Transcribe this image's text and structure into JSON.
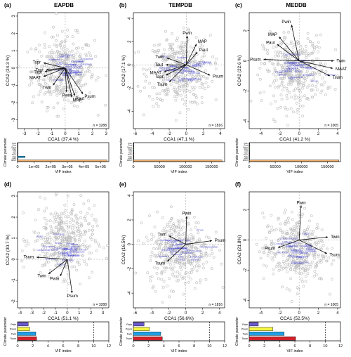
{
  "figure": {
    "panels": [
      {
        "letter": "(a)",
        "db": "EAPDB"
      },
      {
        "letter": "(b)",
        "db": "TEMPDB"
      },
      {
        "letter": "(c)",
        "db": "MEDDB"
      },
      {
        "letter": "(d)",
        "db": ""
      },
      {
        "letter": "(e)",
        "db": ""
      },
      {
        "letter": "(f)",
        "db": ""
      }
    ]
  },
  "colors": {
    "points": "#bdbdbd",
    "species": "#2b2bcc",
    "arrows": "#111111",
    "bars": {
      "Pwin": "#6a5acd",
      "Psum": "#f5f542",
      "Twin": "#1ea0e6",
      "Tsum": "#d2202a",
      "Pspr": "#7fd17f",
      "Paut": "#9aa0ff",
      "Tspr": "#b86cc4",
      "Taut": "#20b2aa",
      "MAP": "#c8c8c8",
      "MAAT": "#f4b06a"
    }
  },
  "chart_data": [
    {
      "type": "scatter",
      "panel": "a",
      "xlabel": "CCA1 (37.4 %)",
      "ylabel": "CCA2 (24.3 %)",
      "xlim": [
        -3.5,
        3.2
      ],
      "ylim": [
        -3.5,
        3.2
      ],
      "xticks": [
        -3,
        -2,
        -1,
        0,
        1,
        2,
        3
      ],
      "yticks": [
        -3,
        -2,
        -1,
        0,
        1,
        2,
        3
      ],
      "n_label": "n = 3288",
      "arrows": [
        {
          "name": "Tspr",
          "x": -1.6,
          "y": 0.3
        },
        {
          "name": "Taut",
          "x": -1.4,
          "y": -0.1
        },
        {
          "name": "MAAT",
          "x": -1.6,
          "y": -0.5
        },
        {
          "name": "Tapr",
          "x": -1.5,
          "y": -0.2
        },
        {
          "name": "Twin",
          "x": -0.9,
          "y": -1.0
        },
        {
          "name": "Pwin",
          "x": 0.1,
          "y": -1.4
        },
        {
          "name": "MAP",
          "x": 0.5,
          "y": -1.7
        },
        {
          "name": "Paut",
          "x": 0.7,
          "y": -1.6
        },
        {
          "name": "Psum",
          "x": 1.3,
          "y": -1.5
        }
      ]
    },
    {
      "type": "scatter",
      "panel": "b",
      "xlabel": "CCA1 (47.1 %)",
      "ylabel": "CCA2 (17.1 %)",
      "xlim": [
        -6.2,
        4.5
      ],
      "ylim": [
        -5.5,
        4.5
      ],
      "xticks": [
        -6,
        -4,
        -2,
        0,
        2,
        4
      ],
      "yticks": [
        -4,
        -2,
        0,
        2,
        4
      ],
      "n_label": "n = 1816",
      "arrows": [
        {
          "name": "Pwin",
          "x": 0.1,
          "y": 2.5
        },
        {
          "name": "MAP",
          "x": 1.2,
          "y": 1.8
        },
        {
          "name": "Paut",
          "x": 1.3,
          "y": 1.1
        },
        {
          "name": "Psum",
          "x": 2.8,
          "y": -0.9
        },
        {
          "name": "Twin",
          "x": -2.3,
          "y": 0.6
        },
        {
          "name": "Taut",
          "x": -2.4,
          "y": 0.0
        },
        {
          "name": "MAAT",
          "x": -2.6,
          "y": -0.6
        },
        {
          "name": "Tapr",
          "x": -2.4,
          "y": -0.9
        },
        {
          "name": "Tsum",
          "x": -2.0,
          "y": -1.5
        }
      ]
    },
    {
      "type": "scatter",
      "panel": "c",
      "xlabel": "CCA1 (41.2 %)",
      "ylabel": "CCA2 (22.6 %)",
      "xlim": [
        -5.2,
        4.3
      ],
      "ylim": [
        -4.5,
        3.2
      ],
      "xticks": [
        -4,
        -2,
        0,
        2,
        4
      ],
      "yticks": [
        -4,
        -2,
        0,
        2
      ],
      "n_label": "n = 1005",
      "arrows": [
        {
          "name": "Pwin",
          "x": -0.8,
          "y": 2.4
        },
        {
          "name": "MAP",
          "x": -2.1,
          "y": 1.6
        },
        {
          "name": "Paut",
          "x": -2.3,
          "y": 1.1
        },
        {
          "name": "Psum",
          "x": -3.7,
          "y": 0.1
        },
        {
          "name": "Twin",
          "x": 3.6,
          "y": 0.0
        },
        {
          "name": "MAAT",
          "x": 3.5,
          "y": -0.5
        },
        {
          "name": "Tsum",
          "x": 3.2,
          "y": -1.0
        }
      ]
    },
    {
      "type": "bar",
      "panel": "a",
      "orientation": "horizontal",
      "xlabel": "VIF index",
      "ylabel": "Climate parameter",
      "xlim": [
        0,
        550000
      ],
      "xticks": [
        0,
        100000,
        200000,
        300000,
        400000,
        500000
      ],
      "xtick_labels": [
        "0",
        "1e+05",
        "2e+05",
        "3e+05",
        "4e+05",
        "5e+05"
      ],
      "categories": [
        "Pwin",
        "Paut",
        "Psum",
        "Pspr",
        "Taut",
        "Tspr",
        "Tsum",
        "Twin",
        "MAP",
        "MAAT"
      ],
      "values": [
        2,
        3,
        3,
        4,
        3,
        5,
        6,
        45000,
        2,
        540000
      ],
      "threshold": 10
    },
    {
      "type": "bar",
      "panel": "b",
      "orientation": "horizontal",
      "xlabel": "VIF index",
      "ylabel": "Climate parameter",
      "xlim": [
        0,
        175000
      ],
      "xticks": [
        0,
        50000,
        100000,
        150000
      ],
      "xtick_labels": [
        "0",
        "50000",
        "100000",
        "150000"
      ],
      "categories": [
        "Pwin",
        "Paut",
        "Psum",
        "Pspr",
        "Taut",
        "Tspr",
        "Tsum",
        "Twin",
        "MAP",
        "MAAT"
      ],
      "values": [
        2,
        3,
        3,
        4,
        3,
        5,
        6,
        8,
        2,
        170000
      ],
      "threshold": 10
    },
    {
      "type": "bar",
      "panel": "c",
      "orientation": "horizontal",
      "xlabel": "VIF index",
      "ylabel": "Climate parameter",
      "xlim": [
        0,
        175000
      ],
      "xticks": [
        0,
        50000,
        100000,
        150000
      ],
      "xtick_labels": [
        "0",
        "50000",
        "100000",
        "150000"
      ],
      "categories": [
        "Pwin",
        "Paut",
        "Psum",
        "Pspr",
        "Taut",
        "Tspr",
        "Tsum",
        "Twin",
        "MAP",
        "MAAT"
      ],
      "values": [
        2,
        3,
        3,
        4,
        3,
        5,
        6,
        8,
        2,
        172000
      ],
      "threshold": 10
    },
    {
      "type": "scatter",
      "panel": "d",
      "xlabel": "CCA1 (51.1 %)",
      "ylabel": "CCA2 (30.7 %)",
      "xlim": [
        -4.2,
        3.5
      ],
      "ylim": [
        -2.3,
        3.2
      ],
      "xticks": [
        -4,
        -3,
        -2,
        -1,
        0,
        1,
        2,
        3
      ],
      "yticks": [
        -2,
        -1,
        0,
        1,
        2,
        3
      ],
      "n_label": "n = 3288",
      "arrows": [
        {
          "name": "Tsum",
          "x": -2.6,
          "y": 0.1
        },
        {
          "name": "Twin",
          "x": -1.6,
          "y": -0.7
        },
        {
          "name": "Pwin",
          "x": -0.6,
          "y": -0.8
        },
        {
          "name": "Psum",
          "x": 0.4,
          "y": -1.6
        }
      ]
    },
    {
      "type": "scatter",
      "panel": "e",
      "xlabel": "CCA1 (56.6%)",
      "ylabel": "CCA2 (16.5%)",
      "xlim": [
        -6.2,
        4.6
      ],
      "ylim": [
        -5.2,
        4.3
      ],
      "xticks": [
        -6,
        -4,
        -2,
        0,
        2,
        4
      ],
      "yticks": [
        -4,
        -2,
        0,
        2,
        4
      ],
      "n_label": "n = 1816",
      "arrows": [
        {
          "name": "Pwin",
          "x": 0.1,
          "y": 2.3
        },
        {
          "name": "Psum",
          "x": 3.1,
          "y": 0.3
        },
        {
          "name": "Twin",
          "x": -2.0,
          "y": 0.7
        },
        {
          "name": "Tsum",
          "x": -2.2,
          "y": -1.4
        }
      ]
    },
    {
      "type": "scatter",
      "panel": "f",
      "xlabel": "CCA1 (52.5%)",
      "ylabel": "CCA2 (21.8%)",
      "xlim": [
        -5.2,
        4.3
      ],
      "ylim": [
        -4.5,
        3.2
      ],
      "xticks": [
        -4,
        -2,
        0,
        2,
        4
      ],
      "yticks": [
        -4,
        -2,
        0,
        2
      ],
      "n_label": "n = 1005",
      "arrows": [
        {
          "name": "Pwin",
          "x": 0.2,
          "y": 2.3
        },
        {
          "name": "Psum",
          "x": -2.2,
          "y": -0.5
        },
        {
          "name": "Twin",
          "x": 3.0,
          "y": 0.2
        },
        {
          "name": "Tsum",
          "x": 2.9,
          "y": -0.9
        }
      ]
    },
    {
      "type": "bar",
      "panel": "d",
      "orientation": "horizontal",
      "xlabel": "VIF index",
      "ylabel": "Climate parameter",
      "xlim": [
        0,
        12
      ],
      "xticks": [
        0,
        2,
        4,
        6,
        8,
        10,
        12
      ],
      "categories": [
        "Pwin",
        "Psum",
        "Twin",
        "Tsum"
      ],
      "values": [
        1.4,
        1.6,
        2.4,
        2.5
      ],
      "threshold": 10
    },
    {
      "type": "bar",
      "panel": "e",
      "orientation": "horizontal",
      "xlabel": "VIF index",
      "ylabel": "Climate parameter",
      "xlim": [
        0,
        12
      ],
      "xticks": [
        0,
        2,
        4,
        6,
        8,
        10,
        12
      ],
      "categories": [
        "Pwin",
        "Psum",
        "Twin",
        "Tsum"
      ],
      "values": [
        1.4,
        2.1,
        3.6,
        3.8
      ],
      "threshold": 10
    },
    {
      "type": "bar",
      "panel": "f",
      "orientation": "horizontal",
      "xlabel": "VIF index",
      "ylabel": "Climate parameter",
      "xlim": [
        0,
        12
      ],
      "xticks": [
        0,
        2,
        4,
        6,
        8,
        10,
        12
      ],
      "categories": [
        "Pwin",
        "Psum",
        "Twin",
        "Tsum"
      ],
      "values": [
        1.2,
        3.1,
        4.6,
        6.1
      ],
      "threshold": 10
    }
  ]
}
